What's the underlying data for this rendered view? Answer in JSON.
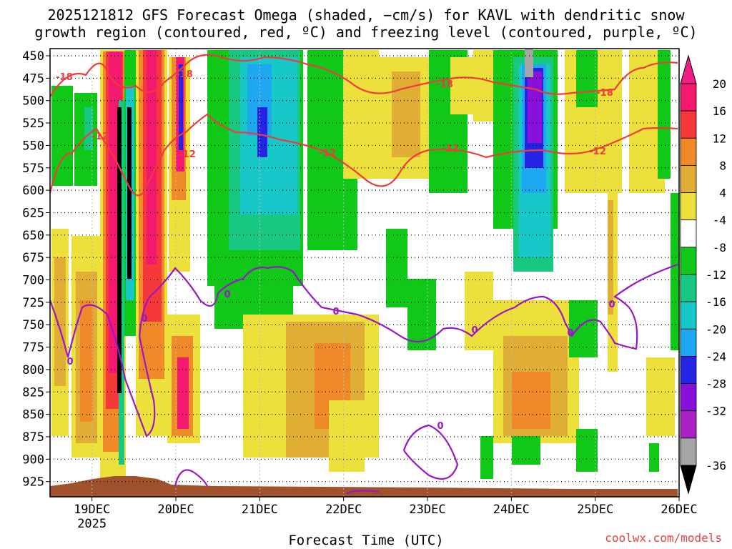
{
  "header": {
    "title_line1": "2025121812 GFS Forecast Omega (shaded, −cm/s) for KAVL with dendritic snow",
    "title_line2": "growth region (contoured, red, ºC) and freezing level (contoured, purple, ºC)"
  },
  "footer": {
    "xlabel": "Forecast Time (UTC)",
    "credit": "coolwx.com/models"
  },
  "chart_data": {
    "type": "heatmap",
    "title": "2025121812 GFS Forecast Omega (shaded, −cm/s) for KAVL with dendritic snow growth region (contoured, red, ºC) and freezing level (contoured, purple, ºC)",
    "xlabel": "Forecast Time (UTC)",
    "ylabel": "",
    "y_reversed": true,
    "x_ticks": [
      "19DEC",
      "20DEC",
      "21DEC",
      "22DEC",
      "23DEC",
      "24DEC",
      "25DEC",
      "26DEC"
    ],
    "x_tick_sub": {
      "19DEC": "2025"
    },
    "y_ticks": [
      450,
      475,
      500,
      525,
      550,
      575,
      600,
      625,
      650,
      675,
      700,
      725,
      750,
      775,
      800,
      825,
      850,
      875,
      900,
      925
    ],
    "x_range_days": [
      18.5,
      26.0
    ],
    "y_range_hpa": [
      442,
      942
    ],
    "colorbar": {
      "levels": [
        20,
        16,
        12,
        8,
        4,
        -4,
        -8,
        -12,
        -16,
        -20,
        -24,
        -28,
        -32,
        -36
      ],
      "colors": [
        "#f2196e",
        "#f5383a",
        "#f08a29",
        "#e0ae35",
        "#ede03a",
        "#ffffff",
        "#10c818",
        "#18c882",
        "#18c8c8",
        "#1ea8f2",
        "#2424e4",
        "#8810d8",
        "#aa22c4",
        "#a6a6a6"
      ],
      "extend_top": "#ee1e84",
      "extend_bottom": "#000000"
    },
    "contours": [
      {
        "label": "-18",
        "color": "#ee3c3c"
      },
      {
        "label": "-12",
        "color": "#ee3c3c"
      },
      {
        "label": "0",
        "color": "#9a16c8"
      }
    ],
    "grid": true
  }
}
